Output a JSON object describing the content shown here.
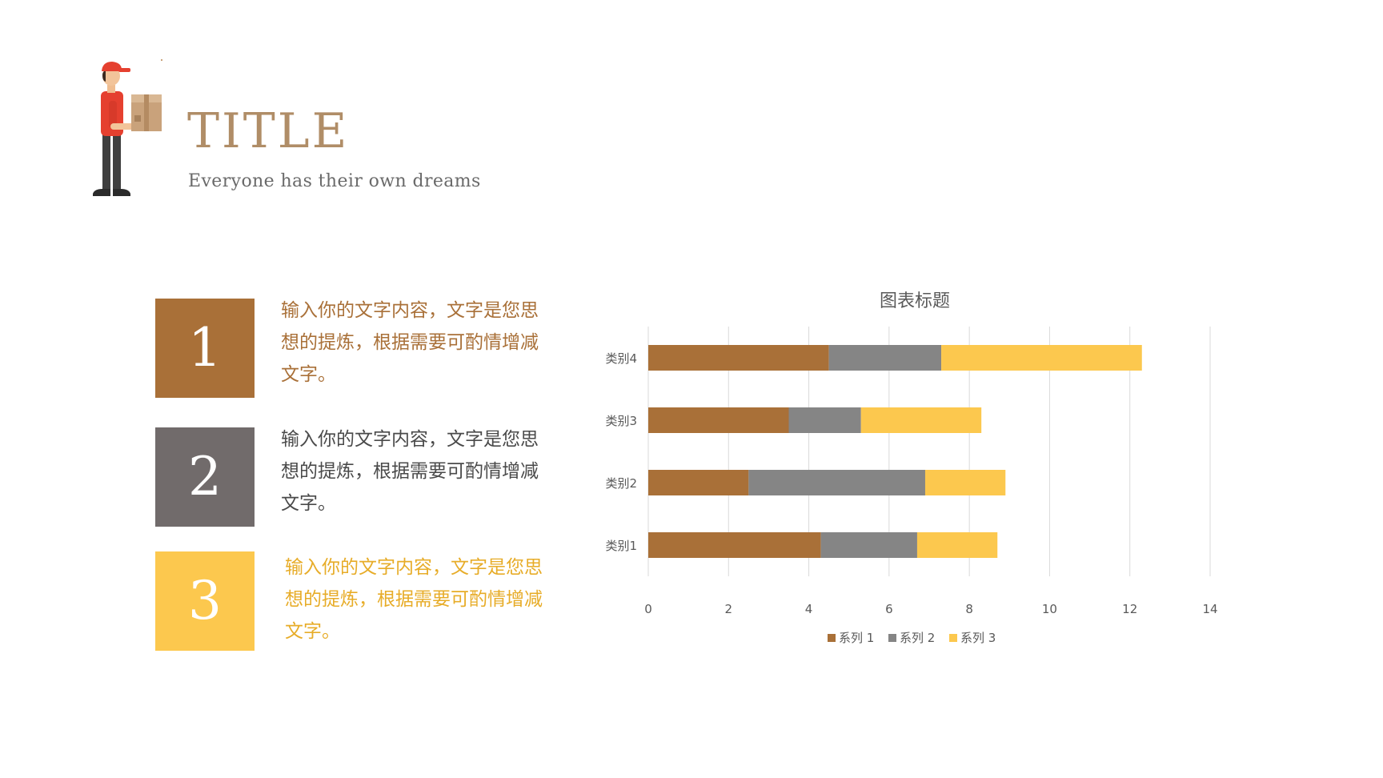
{
  "header": {
    "title": "TITLE",
    "subtitle": "Everyone has their own dreams"
  },
  "items": [
    {
      "number": "1",
      "text": "输入你的文字内容，文字是您思想的提炼，根据需要可酌情增减文字。",
      "box_color": "#a97038",
      "text_color": "#a97038"
    },
    {
      "number": "2",
      "text": "输入你的文字内容，文字是您思想的提炼，根据需要可酌情增减文字。",
      "box_color": "#716b6b",
      "text_color": "#4a4a4a"
    },
    {
      "number": "3",
      "text": "输入你的文字内容，文字是您思想的提炼，根据需要可酌情增减文字。",
      "box_color": "#fcc84e",
      "text_color": "#e7ac28"
    }
  ],
  "chart_data": {
    "type": "bar",
    "orientation": "horizontal",
    "stacked": true,
    "title": "图表标题",
    "categories": [
      "类别1",
      "类别2",
      "类别3",
      "类别4"
    ],
    "series": [
      {
        "name": "系列 1",
        "values": [
          4.3,
          2.5,
          3.5,
          4.5
        ],
        "color": "#a97038"
      },
      {
        "name": "系列 2",
        "values": [
          2.4,
          4.4,
          1.8,
          2.8
        ],
        "color": "#858585"
      },
      {
        "name": "系列 3",
        "values": [
          2.0,
          2.0,
          3.0,
          5.0
        ],
        "color": "#fcc84e"
      }
    ],
    "xlim": [
      0,
      14
    ],
    "xticks": [
      "0",
      "2",
      "4",
      "6",
      "8",
      "10",
      "12",
      "14"
    ],
    "grid": "vertical",
    "legend": "bottom"
  }
}
